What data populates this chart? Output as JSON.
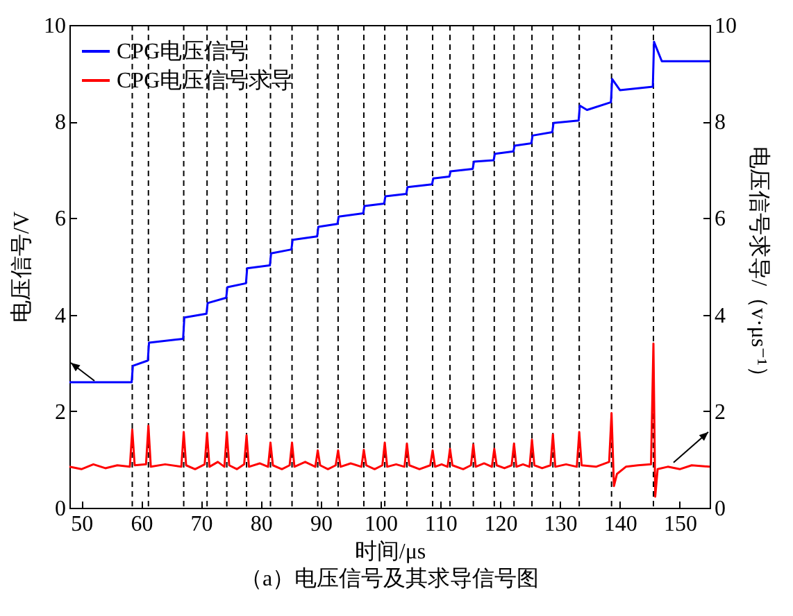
{
  "chart_data": {
    "type": "line",
    "title": "（a）电压信号及其求导信号图",
    "xlabel": "时间/μs",
    "ylabel": "电压信号/V",
    "y2label": "电压信号求导/（v·μs⁻¹）",
    "xlim": [
      48,
      155
    ],
    "xticks": [
      50,
      60,
      70,
      80,
      90,
      100,
      110,
      120,
      130,
      140,
      150
    ],
    "ylim": [
      0,
      10
    ],
    "yticks": [
      0,
      2,
      4,
      6,
      8,
      10
    ],
    "y2lim": [
      0,
      10
    ],
    "y2ticks": [
      0,
      2,
      4,
      6,
      8,
      10
    ],
    "grid": false,
    "legend": "top left",
    "marker": "none",
    "line_style": "solid",
    "series": [
      {
        "name": "CPG电压信号",
        "color": "#0000ff",
        "x": [
          48,
          58.4,
          58.6,
          61.1,
          61.3,
          67.0,
          67.2,
          70.9,
          71.1,
          74.2,
          74.4,
          77.5,
          77.7,
          81.5,
          81.7,
          85.1,
          85.3,
          89.4,
          89.6,
          92.8,
          93.0,
          97.1,
          97.3,
          100.6,
          100.8,
          104.3,
          104.5,
          108.6,
          108.8,
          111.5,
          111.7,
          115.4,
          115.6,
          118.9,
          119.1,
          122.2,
          122.4,
          125.2,
          125.4,
          128.7,
          128.9,
          133.1,
          133.3,
          134.5,
          138.5,
          138.7,
          140,
          145.5,
          145.7,
          147,
          155
        ],
        "values": [
          2.6,
          2.6,
          2.94,
          3.05,
          3.42,
          3.5,
          3.94,
          4.02,
          4.24,
          4.35,
          4.57,
          4.65,
          4.96,
          5.02,
          5.27,
          5.35,
          5.55,
          5.62,
          5.82,
          5.88,
          6.03,
          6.1,
          6.25,
          6.3,
          6.45,
          6.5,
          6.64,
          6.7,
          6.82,
          6.86,
          6.97,
          7.02,
          7.17,
          7.2,
          7.33,
          7.38,
          7.5,
          7.55,
          7.71,
          7.78,
          7.97,
          8.02,
          8.33,
          8.24,
          8.4,
          8.88,
          8.65,
          8.72,
          9.65,
          9.25,
          9.25
        ]
      },
      {
        "name": "CPG电压信号求导",
        "color": "#ff0000",
        "axis": "y2",
        "x": [
          48,
          50,
          52,
          54,
          56,
          58.1,
          58.5,
          58.9,
          60.8,
          61.2,
          61.6,
          64,
          66.7,
          67.1,
          67.5,
          69,
          70.6,
          71.0,
          71.4,
          72.8,
          73.9,
          74.3,
          74.7,
          76,
          77.2,
          77.6,
          78,
          79.8,
          81.2,
          81.6,
          82,
          83.5,
          84.8,
          85.2,
          85.6,
          87.4,
          89.1,
          89.5,
          89.9,
          91.2,
          92.5,
          92.9,
          93.3,
          95,
          96.8,
          97.2,
          97.6,
          99,
          100.3,
          100.7,
          101.1,
          102.6,
          104.0,
          104.4,
          104.8,
          106.5,
          108.3,
          108.7,
          109.1,
          110.2,
          111.2,
          111.6,
          112,
          113.8,
          115.1,
          115.5,
          115.9,
          117.3,
          118.6,
          119.0,
          119.4,
          120.7,
          121.9,
          122.3,
          122.7,
          123.8,
          124.9,
          125.3,
          125.7,
          127,
          128.4,
          128.8,
          129.2,
          131,
          132.8,
          133.2,
          133.6,
          136,
          138.2,
          138.6,
          139.0,
          139.5,
          141,
          143,
          145.2,
          145.6,
          145.9,
          146.3,
          148,
          150,
          152,
          155
        ],
        "values": [
          0.85,
          0.8,
          0.9,
          0.82,
          0.88,
          0.85,
          1.62,
          0.88,
          0.9,
          1.7,
          0.85,
          0.9,
          0.85,
          1.57,
          0.88,
          0.8,
          0.9,
          1.55,
          0.85,
          0.95,
          0.85,
          1.57,
          0.88,
          0.8,
          0.9,
          1.5,
          0.85,
          0.92,
          0.85,
          1.35,
          0.88,
          0.8,
          0.88,
          1.35,
          0.85,
          0.95,
          0.85,
          1.19,
          0.88,
          0.8,
          0.88,
          1.19,
          0.85,
          0.92,
          0.85,
          1.2,
          0.88,
          0.8,
          0.88,
          1.35,
          0.85,
          0.9,
          0.85,
          1.33,
          0.88,
          0.8,
          0.88,
          1.19,
          0.85,
          0.9,
          0.85,
          1.22,
          0.88,
          0.8,
          0.88,
          1.31,
          0.85,
          0.92,
          0.85,
          1.22,
          0.88,
          0.82,
          0.88,
          1.33,
          0.85,
          0.9,
          0.85,
          1.41,
          0.88,
          0.82,
          0.88,
          1.52,
          0.85,
          0.9,
          0.85,
          1.57,
          0.88,
          0.85,
          0.95,
          1.96,
          0.45,
          0.7,
          0.85,
          0.88,
          0.9,
          3.4,
          0.23,
          0.8,
          0.85,
          0.8,
          0.88,
          0.85
        ]
      }
    ],
    "ref_lines": [
      {
        "axis": "x",
        "value": 58.5,
        "color": "#000000",
        "line_style": "dashed"
      },
      {
        "axis": "x",
        "value": 61.2,
        "color": "#000000",
        "line_style": "dashed"
      },
      {
        "axis": "x",
        "value": 67.1,
        "color": "#000000",
        "line_style": "dashed"
      },
      {
        "axis": "x",
        "value": 71.0,
        "color": "#000000",
        "line_style": "dashed"
      },
      {
        "axis": "x",
        "value": 74.3,
        "color": "#000000",
        "line_style": "dashed"
      },
      {
        "axis": "x",
        "value": 77.6,
        "color": "#000000",
        "line_style": "dashed"
      },
      {
        "axis": "x",
        "value": 81.6,
        "color": "#000000",
        "line_style": "dashed"
      },
      {
        "axis": "x",
        "value": 85.2,
        "color": "#000000",
        "line_style": "dashed"
      },
      {
        "axis": "x",
        "value": 89.5,
        "color": "#000000",
        "line_style": "dashed"
      },
      {
        "axis": "x",
        "value": 92.9,
        "color": "#000000",
        "line_style": "dashed"
      },
      {
        "axis": "x",
        "value": 97.2,
        "color": "#000000",
        "line_style": "dashed"
      },
      {
        "axis": "x",
        "value": 100.7,
        "color": "#000000",
        "line_style": "dashed"
      },
      {
        "axis": "x",
        "value": 104.4,
        "color": "#000000",
        "line_style": "dashed"
      },
      {
        "axis": "x",
        "value": 108.7,
        "color": "#000000",
        "line_style": "dashed"
      },
      {
        "axis": "x",
        "value": 111.6,
        "color": "#000000",
        "line_style": "dashed"
      },
      {
        "axis": "x",
        "value": 115.5,
        "color": "#000000",
        "line_style": "dashed"
      },
      {
        "axis": "x",
        "value": 119.0,
        "color": "#000000",
        "line_style": "dashed"
      },
      {
        "axis": "x",
        "value": 122.3,
        "color": "#000000",
        "line_style": "dashed"
      },
      {
        "axis": "x",
        "value": 125.3,
        "color": "#000000",
        "line_style": "dashed"
      },
      {
        "axis": "x",
        "value": 128.8,
        "color": "#000000",
        "line_style": "dashed"
      },
      {
        "axis": "x",
        "value": 133.2,
        "color": "#000000",
        "line_style": "dashed"
      },
      {
        "axis": "x",
        "value": 138.6,
        "color": "#000000",
        "line_style": "dashed"
      },
      {
        "axis": "x",
        "value": 145.6,
        "color": "#000000",
        "line_style": "dashed"
      }
    ]
  }
}
